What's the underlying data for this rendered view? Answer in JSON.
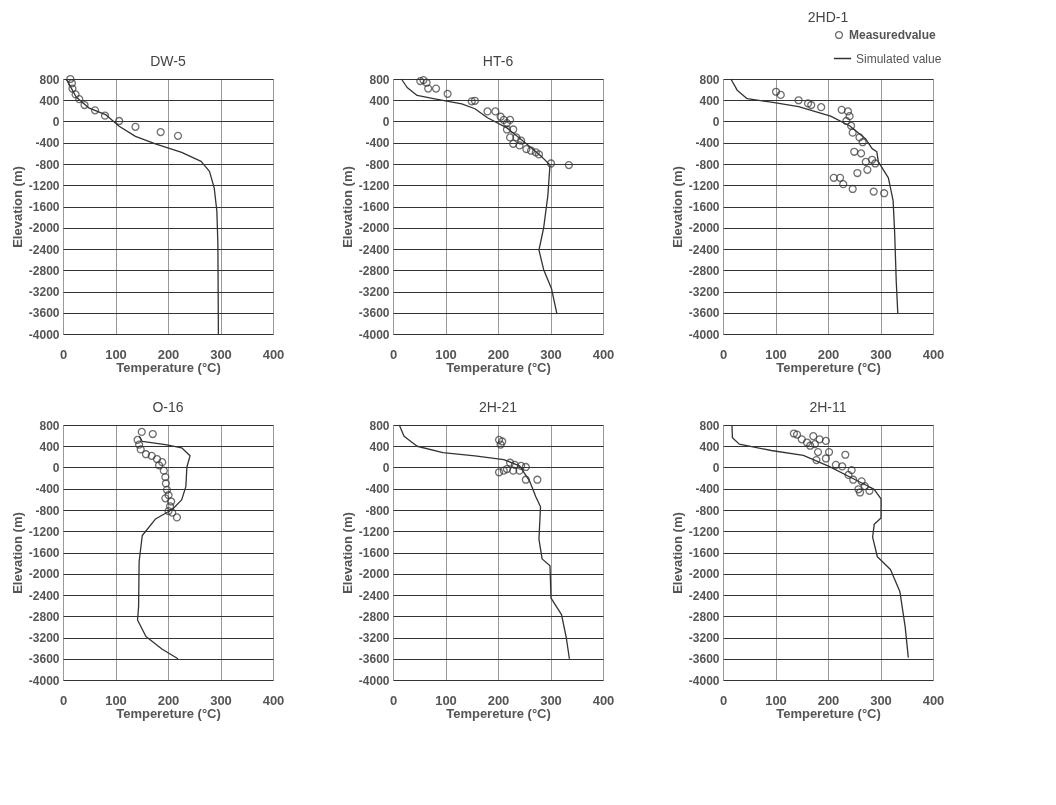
{
  "chart_data": [
    {
      "type": "scatter",
      "title": "DW-5",
      "xlabel": "Temperature (°C)",
      "ylabel": "Elevation (m)",
      "xlim": [
        0,
        400
      ],
      "ylim": [
        -4000,
        800
      ],
      "xticks": [
        0,
        100,
        200,
        300,
        400
      ],
      "yticks": [
        800,
        400,
        0,
        -400,
        -800,
        -1200,
        -1600,
        -2000,
        -2400,
        -2800,
        -3200,
        -3600,
        -4000
      ],
      "grid": true,
      "legend": false,
      "series": [
        {
          "color": "#333333",
          "marker": "circle",
          "x": [
            14,
            17,
            18,
            24,
            31,
            41,
            61,
            80,
            107,
            138,
            186,
            219
          ],
          "values": [
            800,
            720,
            620,
            510,
            420,
            310,
            210,
            110,
            10,
            -100,
            -200,
            -270
          ]
        },
        {
          "type": "line",
          "color": "#333333",
          "line_style": "solid",
          "x": [
            5,
            8,
            25,
            50,
            81,
            107,
            138,
            176,
            226,
            263,
            279,
            288,
            293,
            295,
            296
          ],
          "values": [
            800,
            770,
            460,
            250,
            130,
            -90,
            -280,
            -420,
            -580,
            -750,
            -940,
            -1250,
            -1680,
            -2290,
            -4000
          ]
        }
      ]
    },
    {
      "type": "scatter",
      "title": "HT-6",
      "xlabel": "Temperature (°C)",
      "ylabel": "Elevation (m)",
      "xlim": [
        0,
        400
      ],
      "ylim": [
        -4000,
        800
      ],
      "xticks": [
        0,
        100,
        200,
        300,
        400
      ],
      "yticks": [
        800,
        400,
        0,
        -400,
        -800,
        -1200,
        -1600,
        -2000,
        -2400,
        -2800,
        -3200,
        -3600,
        -4000
      ],
      "grid": true,
      "legend": false,
      "series": [
        {
          "color": "#333333",
          "marker": "circle",
          "x": [
            52,
            58,
            64,
            67,
            82,
            104,
            150,
            156,
            180,
            195,
            205,
            211,
            217,
            223,
            217,
            229,
            223,
            235,
            244,
            229,
            241,
            254,
            263,
            272,
            278,
            301,
            335
          ],
          "values": [
            760,
            780,
            730,
            620,
            620,
            520,
            380,
            390,
            190,
            190,
            90,
            30,
            -30,
            30,
            -150,
            -150,
            -300,
            -300,
            -360,
            -420,
            -450,
            -520,
            -550,
            -580,
            -620,
            -790,
            -820
          ]
        },
        {
          "type": "line",
          "color": "#333333",
          "line_style": "solid",
          "x": [
            16,
            27,
            46,
            82,
            131,
            156,
            180,
            217,
            254,
            284,
            299,
            295,
            287,
            278,
            287,
            302,
            312
          ],
          "values": [
            800,
            640,
            490,
            420,
            330,
            240,
            70,
            -120,
            -420,
            -670,
            -820,
            -1390,
            -2000,
            -2420,
            -2790,
            -3150,
            -3610
          ]
        }
      ]
    },
    {
      "type": "scatter",
      "title": "2HD-1",
      "xlabel": "Tempereture (°C)",
      "ylabel": "Elevation (m)",
      "xlim": [
        0,
        400
      ],
      "ylim": [
        -4000,
        800
      ],
      "xticks": [
        0,
        100,
        200,
        300,
        400
      ],
      "yticks": [
        800,
        400,
        0,
        -400,
        -800,
        -1200,
        -1600,
        -2000,
        -2400,
        -2800,
        -3200,
        -3600,
        -4000
      ],
      "grid": true,
      "legend": "top right",
      "series": [
        {
          "name": "Measuredvalue",
          "color": "#333333",
          "marker": "circle",
          "x": [
            101,
            110,
            144,
            162,
            168,
            187,
            226,
            238,
            241,
            235,
            244,
            247,
            260,
            266,
            250,
            263,
            272,
            284,
            290,
            275,
            256,
            211,
            223,
            229,
            247,
            287,
            307
          ],
          "values": [
            560,
            500,
            400,
            340,
            310,
            270,
            220,
            190,
            100,
            10,
            -80,
            -210,
            -300,
            -390,
            -570,
            -600,
            -760,
            -720,
            -790,
            -910,
            -970,
            -1060,
            -1060,
            -1180,
            -1270,
            -1320,
            -1350
          ]
        },
        {
          "type": "line",
          "name": "Simulated value",
          "color": "#333333",
          "line_style": "solid",
          "x": [
            15,
            27,
            46,
            95,
            144,
            205,
            241,
            272,
            284,
            293,
            296,
            315,
            324,
            327,
            330,
            333
          ],
          "values": [
            800,
            590,
            430,
            360,
            280,
            100,
            -80,
            -330,
            -510,
            -570,
            -760,
            -1060,
            -1490,
            -2100,
            -3010,
            -3620
          ]
        }
      ]
    },
    {
      "type": "scatter",
      "title": "O-16",
      "xlabel": "Tempereture (°C)",
      "ylabel": "Elevation (m)",
      "xlim": [
        0,
        400
      ],
      "ylim": [
        -4000,
        800
      ],
      "xticks": [
        0,
        100,
        200,
        300,
        400
      ],
      "yticks": [
        800,
        400,
        0,
        -400,
        -800,
        -1200,
        -1600,
        -2000,
        -2400,
        -2800,
        -3200,
        -3600,
        -4000
      ],
      "grid": true,
      "legend": false,
      "series": [
        {
          "color": "#333333",
          "marker": "circle",
          "x": [
            150,
            171,
            142,
            145,
            148,
            158,
            169,
            179,
            189,
            183,
            192,
            195,
            196,
            198,
            201,
            195,
            206,
            204,
            201,
            208,
            217
          ],
          "values": [
            670,
            630,
            520,
            430,
            340,
            250,
            220,
            160,
            100,
            40,
            -60,
            -180,
            -300,
            -420,
            -520,
            -580,
            -640,
            -730,
            -820,
            -850,
            -940
          ]
        },
        {
          "type": "line",
          "color": "#333333",
          "line_style": "solid",
          "x": [
            145,
            151,
            195,
            226,
            242,
            236,
            234,
            226,
            208,
            176,
            151,
            145,
            144,
            142,
            158,
            189,
            219
          ],
          "values": [
            590,
            490,
            430,
            370,
            220,
            10,
            -360,
            -610,
            -790,
            -970,
            -1280,
            -1770,
            -2620,
            -2870,
            -3180,
            -3420,
            -3600
          ]
        }
      ]
    },
    {
      "type": "scatter",
      "title": "2H-21",
      "xlabel": "Tempereture (°C)",
      "ylabel": "Elevation (m)",
      "xlim": [
        0,
        400
      ],
      "ylim": [
        -4000,
        800
      ],
      "xticks": [
        0,
        100,
        200,
        300,
        400
      ],
      "yticks": [
        800,
        400,
        0,
        -400,
        -800,
        -1200,
        -1600,
        -2000,
        -2400,
        -2800,
        -3200,
        -3600,
        -4000
      ],
      "grid": true,
      "legend": false,
      "series": [
        {
          "color": "#333333",
          "marker": "circle",
          "x": [
            202,
            208,
            205,
            223,
            232,
            244,
            253,
            217,
            229,
            241,
            202,
            211,
            253,
            275
          ],
          "values": [
            520,
            490,
            430,
            90,
            50,
            30,
            10,
            -30,
            -60,
            -60,
            -90,
            -60,
            -230,
            -230
          ]
        },
        {
          "type": "line",
          "color": "#333333",
          "line_style": "solid",
          "x": [
            12,
            21,
            46,
            95,
            156,
            211,
            241,
            260,
            272,
            281,
            278,
            284,
            299,
            301,
            321,
            330,
            336
          ],
          "values": [
            800,
            590,
            400,
            280,
            220,
            150,
            30,
            -250,
            -550,
            -740,
            -1350,
            -1720,
            -1850,
            -2460,
            -2770,
            -3200,
            -3600
          ]
        }
      ]
    },
    {
      "type": "scatter",
      "title": "2H-11",
      "xlabel": "Tempereture (°C)",
      "ylabel": "Elevation (m)",
      "xlim": [
        0,
        400
      ],
      "ylim": [
        -4000,
        800
      ],
      "xticks": [
        0,
        100,
        200,
        300,
        400
      ],
      "yticks": [
        800,
        400,
        0,
        -400,
        -800,
        -1200,
        -1600,
        -2000,
        -2400,
        -2800,
        -3200,
        -3600,
        -4000
      ],
      "grid": true,
      "legend": false,
      "series": [
        {
          "color": "#333333",
          "marker": "circle",
          "x": [
            135,
            141,
            150,
            160,
            166,
            175,
            172,
            184,
            196,
            181,
            202,
            196,
            178,
            233,
            215,
            227,
            245,
            239,
            248,
            264,
            258,
            270,
            279,
            261
          ],
          "values": [
            640,
            620,
            530,
            470,
            410,
            440,
            590,
            530,
            500,
            290,
            290,
            170,
            140,
            240,
            50,
            20,
            -50,
            -140,
            -230,
            -260,
            -410,
            -350,
            -440,
            -470
          ]
        },
        {
          "type": "line",
          "color": "#333333",
          "line_style": "solid",
          "x": [
            17,
            18,
            31,
            92,
            153,
            202,
            252,
            288,
            301,
            301,
            288,
            285,
            294,
            319,
            337,
            347,
            353
          ],
          "values": [
            800,
            560,
            440,
            320,
            230,
            20,
            -230,
            -410,
            -590,
            -950,
            -1070,
            -1310,
            -1680,
            -1920,
            -2340,
            -3000,
            -3580
          ]
        }
      ]
    }
  ]
}
